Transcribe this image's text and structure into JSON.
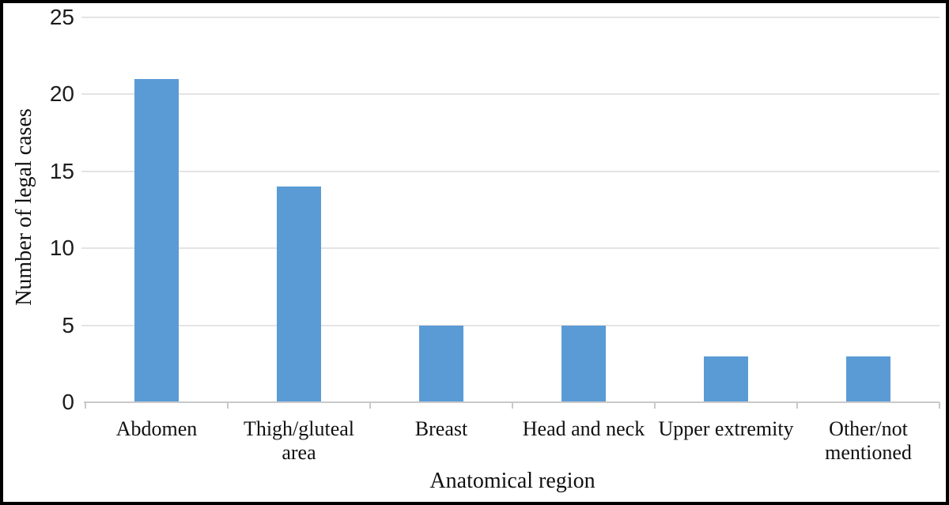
{
  "chart_data": {
    "type": "bar",
    "title": "",
    "xlabel": "Anatomical region",
    "ylabel": "Number of legal cases",
    "categories": [
      "Abdomen",
      "Thigh/gluteal\narea",
      "Breast",
      "Head and neck",
      "Upper  extremity",
      "Other/not\nmentioned"
    ],
    "values": [
      21,
      14,
      5,
      5,
      3,
      3
    ],
    "ylim": [
      0,
      25
    ],
    "yticks": [
      0,
      5,
      10,
      15,
      20,
      25
    ],
    "grid": "horizontal-only",
    "legend": "none",
    "colors": {
      "bar": "#5b9bd5",
      "gridline": "#e4e4e4",
      "axis_line": "#c9c9c9",
      "text": "#111111",
      "frame_border": "#000000",
      "background": "#ffffff"
    }
  }
}
